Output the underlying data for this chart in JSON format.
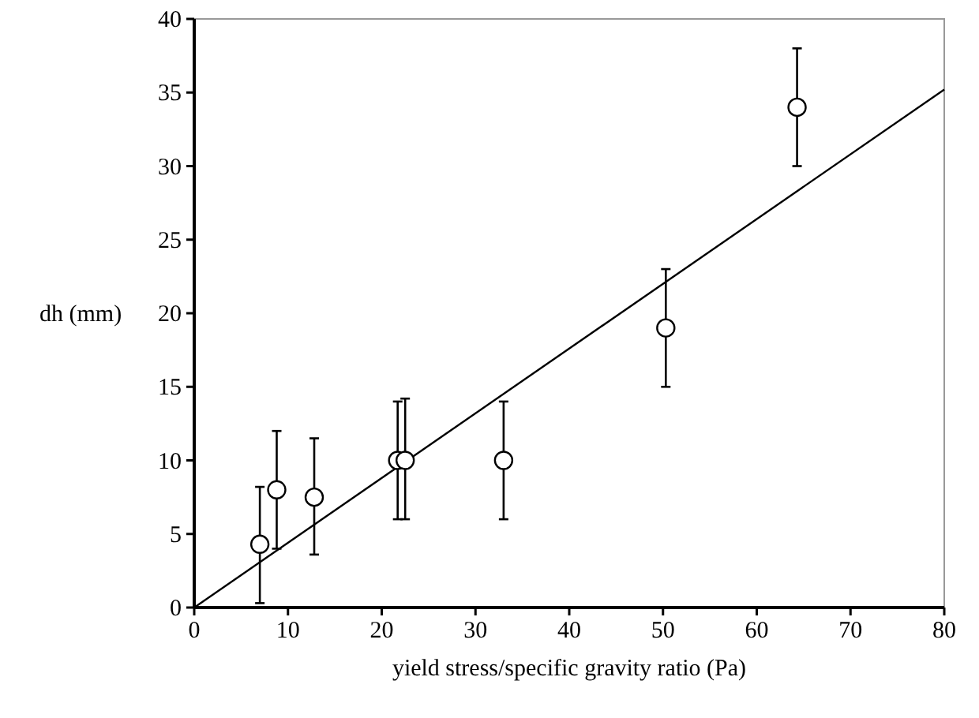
{
  "chart_data": {
    "type": "scatter",
    "xlabel": "yield stress/specific gravity ratio (Pa)",
    "ylabel": "dh (mm)",
    "xlim": [
      0,
      80
    ],
    "ylim": [
      0,
      40
    ],
    "xticks": [
      0,
      10,
      20,
      30,
      40,
      50,
      60,
      70,
      80
    ],
    "yticks": [
      0,
      5,
      10,
      15,
      20,
      25,
      30,
      35,
      40
    ],
    "grid": false,
    "series": [
      {
        "color": "#000000",
        "marker": "circle",
        "x": [
          7,
          8.8,
          12.8,
          21.7,
          22.5,
          33,
          50.3,
          64.3
        ],
        "values": [
          4.3,
          8,
          7.5,
          10,
          10,
          10,
          19,
          34
        ],
        "errors": [
          [
            0.3,
            8.2
          ],
          [
            4,
            12
          ],
          [
            3.6,
            11.5
          ],
          [
            6,
            14
          ],
          [
            6,
            14.2
          ],
          [
            6,
            14
          ],
          [
            15,
            23
          ],
          [
            30,
            38
          ]
        ]
      },
      {
        "type": "line",
        "color": "#000000",
        "line_style": "solid",
        "x": [
          0,
          80
        ],
        "values": [
          0,
          35.2
        ]
      }
    ]
  }
}
